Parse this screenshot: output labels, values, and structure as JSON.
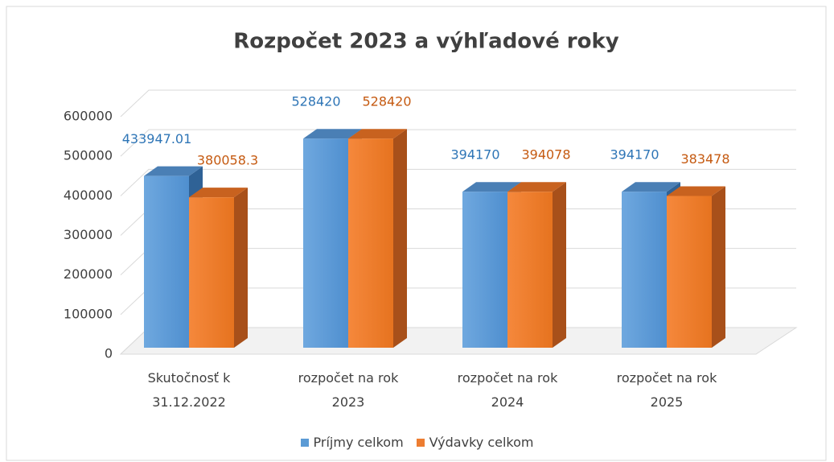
{
  "chart_data": {
    "type": "bar3d",
    "title": "Rozpočet 2023 a výhľadové roky",
    "categories": [
      "Skutočnosť k 31.12.2022",
      "rozpočet na rok 2023",
      "rozpočet na rok 2024",
      "rozpočet na rok 2025"
    ],
    "series": [
      {
        "name": "Príjmy celkom",
        "color": "#5b9bd5",
        "values": [
          433947.01,
          528420,
          394170,
          394170
        ]
      },
      {
        "name": "Výdavky celkom",
        "color": "#ed7d31",
        "values": [
          380058.3,
          528420,
          394078,
          383478
        ]
      }
    ],
    "ylim": [
      0,
      600000
    ],
    "yticks": [
      0,
      100000,
      200000,
      300000,
      400000,
      500000,
      600000
    ],
    "grid": true,
    "legend": "bottom"
  }
}
